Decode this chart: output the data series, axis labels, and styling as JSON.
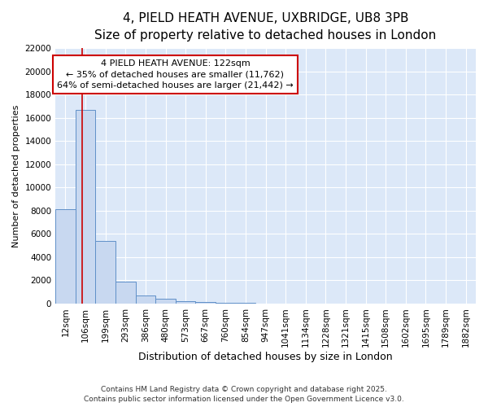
{
  "title_line1": "4, PIELD HEATH AVENUE, UXBRIDGE, UB8 3PB",
  "title_line2": "Size of property relative to detached houses in London",
  "xlabel": "Distribution of detached houses by size in London",
  "ylabel": "Number of detached properties",
  "categories": [
    "12sqm",
    "106sqm",
    "199sqm",
    "293sqm",
    "386sqm",
    "480sqm",
    "573sqm",
    "667sqm",
    "760sqm",
    "854sqm",
    "947sqm",
    "1041sqm",
    "1134sqm",
    "1228sqm",
    "1321sqm",
    "1415sqm",
    "1508sqm",
    "1602sqm",
    "1695sqm",
    "1789sqm",
    "1882sqm"
  ],
  "values": [
    8100,
    16700,
    5400,
    1900,
    700,
    380,
    180,
    100,
    60,
    35,
    20,
    15,
    10,
    8,
    5,
    3,
    2,
    1,
    1,
    0,
    0
  ],
  "bar_color": "#c8d8f0",
  "bar_edge_color": "#6090c8",
  "annotation_text": "4 PIELD HEATH AVENUE: 122sqm\n← 35% of detached houses are smaller (11,762)\n64% of semi-detached houses are larger (21,442) →",
  "vline_color": "#cc0000",
  "annotation_box_color": "#cc0000",
  "ylim": [
    0,
    22000
  ],
  "yticks": [
    0,
    2000,
    4000,
    6000,
    8000,
    10000,
    12000,
    14000,
    16000,
    18000,
    20000,
    22000
  ],
  "footer_line1": "Contains HM Land Registry data © Crown copyright and database right 2025.",
  "footer_line2": "Contains public sector information licensed under the Open Government Licence v3.0.",
  "bg_color": "#ffffff",
  "plot_bg_color": "#dce8f8",
  "grid_color": "#ffffff",
  "title1_fontsize": 11,
  "title2_fontsize": 10,
  "tick_fontsize": 7.5,
  "xlabel_fontsize": 9,
  "ylabel_fontsize": 8
}
